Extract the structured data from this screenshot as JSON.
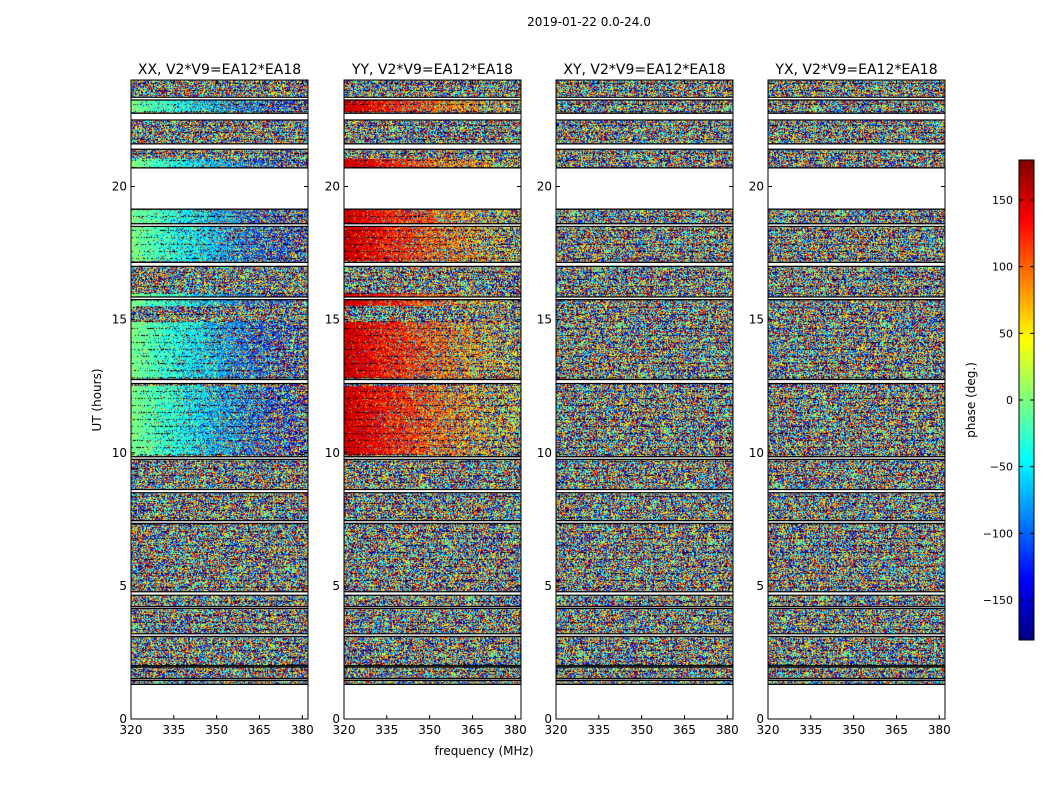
{
  "chart_data": {
    "type": "heatmap",
    "suptitle": "2019-01-22 0.0-24.0",
    "xlabel": "frequency (MHz)",
    "ylabel": "UT (hours)",
    "xlim": [
      320,
      382
    ],
    "ylim": [
      0,
      24
    ],
    "xticks": [
      320,
      335,
      350,
      365,
      380
    ],
    "yticks": [
      0,
      5,
      10,
      15,
      20
    ],
    "panels": [
      {
        "title": "XX, V2*V9=EA12*EA18",
        "coherent_phase": 0,
        "phase_slope": -140,
        "strength": 1
      },
      {
        "title": "YY, V2*V9=EA12*EA18",
        "coherent_phase": 155,
        "phase_slope": -100,
        "strength": 1
      },
      {
        "title": "XY, V2*V9=EA12*EA18",
        "coherent_phase": 0,
        "phase_slope": 0,
        "strength": 0
      },
      {
        "title": "YX, V2*V9=EA12*EA18",
        "coherent_phase": 0,
        "phase_slope": 0,
        "strength": 0
      }
    ],
    "flagged_ut_ranges": [
      [
        0.0,
        1.3
      ],
      [
        1.45,
        1.52
      ],
      [
        1.95,
        2.0
      ],
      [
        3.1,
        3.2
      ],
      [
        4.15,
        4.22
      ],
      [
        4.65,
        4.78
      ],
      [
        7.35,
        7.45
      ],
      [
        8.5,
        8.62
      ],
      [
        9.75,
        9.85
      ],
      [
        12.6,
        12.75
      ],
      [
        15.75,
        15.85
      ],
      [
        17.0,
        17.15
      ],
      [
        18.5,
        18.6
      ],
      [
        19.15,
        20.7
      ],
      [
        21.4,
        21.6
      ],
      [
        22.5,
        22.75
      ],
      [
        23.25,
        23.35
      ]
    ],
    "coherent_ut_ranges": [
      [
        9.9,
        12.5
      ],
      [
        12.8,
        14.9
      ],
      [
        15.5,
        16.0
      ],
      [
        17.2,
        18.5
      ],
      [
        18.6,
        19.1
      ],
      [
        20.7,
        21.05
      ],
      [
        22.8,
        23.3
      ]
    ],
    "colorbar": {
      "label": "phase (deg.)",
      "min": -180,
      "max": 180,
      "ticks": [
        -150,
        -100,
        -50,
        0,
        50,
        100,
        150
      ],
      "tick_labels": [
        "−150",
        "−100",
        "−50",
        "0",
        "50",
        "100",
        "150"
      ],
      "colormap": "jet"
    }
  }
}
